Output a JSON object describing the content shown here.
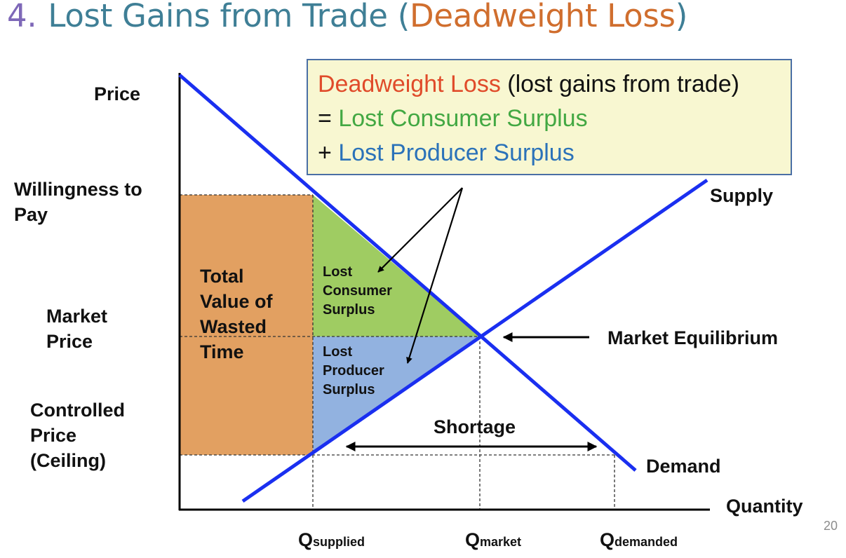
{
  "title": {
    "number": "4.",
    "main": "Lost Gains from Trade (",
    "highlight": "Deadweight Loss",
    "close": ")"
  },
  "callout": {
    "line1_highlight": "Deadweight Loss",
    "line1_rest": " (lost gains from trade)",
    "line2_prefix": "= ",
    "line2_text": "Lost Consumer Surplus",
    "line3_prefix": "+ ",
    "line3_text": "Lost Producer Surplus"
  },
  "axes": {
    "y_label": "Price",
    "x_label": "Quantity"
  },
  "y_labels": {
    "willingness": [
      "Willingness to",
      "Pay"
    ],
    "market": [
      "Market",
      "Price"
    ],
    "controlled": [
      "Controlled",
      "Price",
      "(Ceiling)"
    ]
  },
  "x_labels": {
    "supplied": {
      "q": "Q",
      "sub": "supplied"
    },
    "market": {
      "q": "Q",
      "sub": "market"
    },
    "demanded": {
      "q": "Q",
      "sub": "demanded"
    }
  },
  "curves": {
    "supply": "Supply",
    "demand": "Demand"
  },
  "annotations": {
    "equilibrium": "Market Equilibrium",
    "shortage": "Shortage",
    "wasted_time": [
      "Total",
      "Value of",
      "Wasted",
      "Time"
    ],
    "lost_cs": [
      "Lost",
      "Consumer",
      "Surplus"
    ],
    "lost_ps": [
      "Lost",
      "Producer",
      "Surplus"
    ]
  },
  "colors": {
    "curve": "#1a2ff0",
    "wasted_time_fill": "#e2a061",
    "lost_cs_fill": "#9fcc62",
    "lost_ps_fill": "#92b2e0",
    "callout_bg": "#f8f7d1"
  },
  "page_number": "20"
}
